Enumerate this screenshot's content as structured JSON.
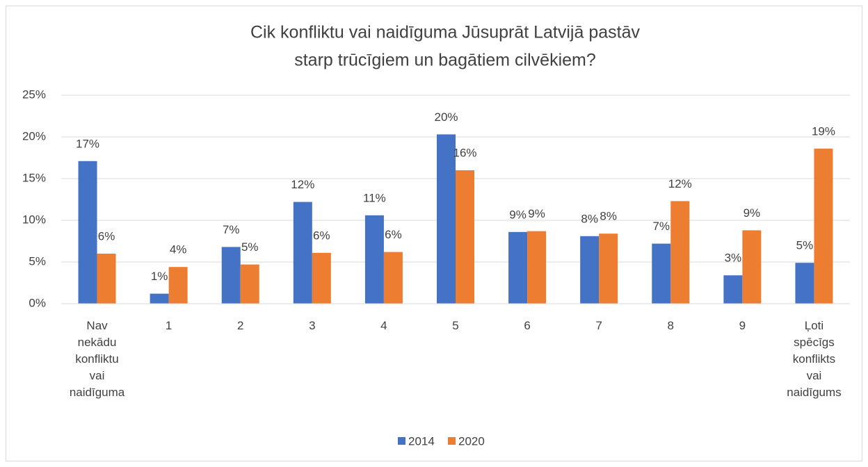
{
  "chart_data": {
    "type": "bar",
    "title": [
      "Cik konfliktu vai naidīguma Jūsuprāt Latvijā pastāv",
      "starp trūcīgiem un bagātiem cilvēkiem?"
    ],
    "categories": [
      "Nav nekādu konfliktu vai naidīguma",
      "1",
      "2",
      "3",
      "4",
      "5",
      "6",
      "7",
      "8",
      "9",
      "Ļoti spēcīgs konflikts vai naidīgums"
    ],
    "series": [
      {
        "name": "2014",
        "color": "#4472c4",
        "values": [
          17.1,
          1.2,
          6.8,
          12.2,
          10.6,
          20.3,
          8.6,
          8.1,
          7.2,
          3.4,
          4.9
        ],
        "value_labels": [
          "17%",
          "1%",
          "7%",
          "12%",
          "11%",
          "20%",
          "9%",
          "8%",
          "7%",
          "3%",
          "5%"
        ]
      },
      {
        "name": "2020",
        "color": "#ed7d31",
        "values": [
          6.0,
          4.4,
          4.7,
          6.1,
          6.2,
          16.0,
          8.7,
          8.4,
          12.3,
          8.8,
          18.6
        ],
        "value_labels": [
          "6%",
          "4%",
          "5%",
          "6%",
          "6%",
          "16%",
          "9%",
          "8%",
          "12%",
          "9%",
          "19%"
        ]
      }
    ],
    "ylim": [
      0,
      25
    ],
    "yticks": [
      {
        "value": 0,
        "label": "0%"
      },
      {
        "value": 5,
        "label": "5%"
      },
      {
        "value": 10,
        "label": "10%"
      },
      {
        "value": 15,
        "label": "15%"
      },
      {
        "value": 20,
        "label": "20%"
      },
      {
        "value": 25,
        "label": "25%"
      }
    ],
    "grid": true,
    "legend": "bottom"
  }
}
